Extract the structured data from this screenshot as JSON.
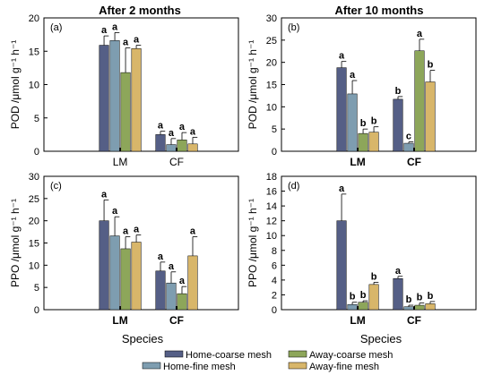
{
  "figure": {
    "col_titles": [
      "After 2 months",
      "After 10 months"
    ],
    "x_axis_label": "Species",
    "legend": [
      {
        "label": "Home-coarse mesh",
        "color": "#555f86"
      },
      {
        "label": "Home-fine mesh",
        "color": "#7e9db0"
      },
      {
        "label": "Away-coarse mesh",
        "color": "#8da65a"
      },
      {
        "label": "Away-fine mesh",
        "color": "#d8b66a"
      }
    ]
  },
  "chart_data": [
    {
      "type": "bar",
      "panel": "(a)",
      "title": "After 2 months",
      "ylabel": "POD /μmol g⁻¹ h⁻¹",
      "ylim": [
        0,
        20
      ],
      "yticks": [
        0,
        5,
        10,
        15,
        20
      ],
      "categories": [
        "LM",
        "CF"
      ],
      "category_bold": false,
      "series": [
        {
          "name": "Home-coarse mesh",
          "values": [
            15.9,
            2.5
          ],
          "errors": [
            1.4,
            0.5
          ],
          "letters": [
            "a",
            "a"
          ]
        },
        {
          "name": "Home-fine mesh",
          "values": [
            16.6,
            1.0
          ],
          "errors": [
            1.2,
            0.9
          ],
          "letters": [
            "a",
            "a"
          ]
        },
        {
          "name": "Away-coarse mesh",
          "values": [
            11.8,
            1.7
          ],
          "errors": [
            3.7,
            1.1
          ],
          "letters": [
            "a",
            "a"
          ]
        },
        {
          "name": "Away-fine mesh",
          "values": [
            15.4,
            1.1
          ],
          "errors": [
            0.5,
            1.0
          ],
          "letters": [
            "a",
            "a"
          ]
        }
      ]
    },
    {
      "type": "bar",
      "panel": "(b)",
      "title": "After 10 months",
      "ylabel": "POD /μmol g⁻¹ h⁻¹",
      "ylim": [
        0,
        30
      ],
      "yticks": [
        0,
        5,
        10,
        15,
        20,
        25,
        30
      ],
      "categories": [
        "LM",
        "CF"
      ],
      "category_bold": true,
      "series": [
        {
          "name": "Home-coarse mesh",
          "values": [
            18.8,
            11.7
          ],
          "errors": [
            1.4,
            0.6
          ],
          "letters": [
            "a",
            "b"
          ]
        },
        {
          "name": "Home-fine mesh",
          "values": [
            12.9,
            1.8
          ],
          "errors": [
            3.0,
            0.3
          ],
          "letters": [
            "a",
            "c"
          ]
        },
        {
          "name": "Away-coarse mesh",
          "values": [
            4.0,
            22.6
          ],
          "errors": [
            1.0,
            2.6
          ],
          "letters": [
            "b",
            "a"
          ]
        },
        {
          "name": "Away-fine mesh",
          "values": [
            4.3,
            15.6
          ],
          "errors": [
            1.2,
            2.6
          ],
          "letters": [
            "b",
            "b"
          ]
        }
      ]
    },
    {
      "type": "bar",
      "panel": "(c)",
      "ylabel": "PPO /μmol g⁻¹ h⁻¹",
      "ylim": [
        0,
        30
      ],
      "yticks": [
        0,
        5,
        10,
        15,
        20,
        25,
        30
      ],
      "categories": [
        "LM",
        "CF"
      ],
      "category_bold": true,
      "series": [
        {
          "name": "Home-coarse mesh",
          "values": [
            20.0,
            8.7
          ],
          "errors": [
            4.7,
            2.0
          ],
          "letters": [
            "a",
            "a"
          ]
        },
        {
          "name": "Home-fine mesh",
          "values": [
            16.6,
            6.0
          ],
          "errors": [
            4.3,
            2.5
          ],
          "letters": [
            "a",
            "a"
          ]
        },
        {
          "name": "Away-coarse mesh",
          "values": [
            13.7,
            3.6
          ],
          "errors": [
            2.7,
            1.6
          ],
          "letters": [
            "a",
            "a"
          ]
        },
        {
          "name": "Away-fine mesh",
          "values": [
            15.2,
            12.1
          ],
          "errors": [
            1.6,
            4.3
          ],
          "letters": [
            "a",
            "a"
          ]
        }
      ]
    },
    {
      "type": "bar",
      "panel": "(d)",
      "ylabel": "PPO /μmol g⁻¹ h⁻¹",
      "ylim": [
        0,
        18
      ],
      "yticks": [
        0,
        2,
        4,
        6,
        8,
        10,
        12,
        14,
        16,
        18
      ],
      "categories": [
        "LM",
        "CF"
      ],
      "category_bold": true,
      "series": [
        {
          "name": "Home-coarse mesh",
          "values": [
            12.0,
            4.2
          ],
          "errors": [
            3.6,
            0.3
          ],
          "letters": [
            "a",
            "a"
          ]
        },
        {
          "name": "Home-fine mesh",
          "values": [
            0.7,
            0.4
          ],
          "errors": [
            0.3,
            0.2
          ],
          "letters": [
            "b",
            "b"
          ]
        },
        {
          "name": "Away-coarse mesh",
          "values": [
            1.0,
            0.6
          ],
          "errors": [
            0.2,
            0.3
          ],
          "letters": [
            "b",
            "b"
          ]
        },
        {
          "name": "Away-fine mesh",
          "values": [
            3.4,
            0.8
          ],
          "errors": [
            0.3,
            0.3
          ],
          "letters": [
            "b",
            "b"
          ]
        }
      ]
    }
  ]
}
